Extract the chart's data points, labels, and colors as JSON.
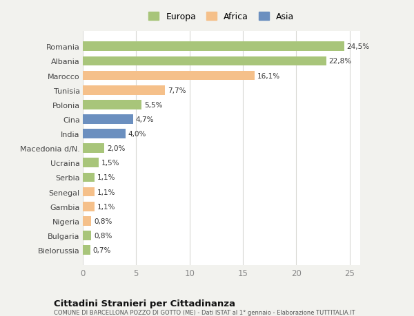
{
  "categories": [
    "Romania",
    "Albania",
    "Marocco",
    "Tunisia",
    "Polonia",
    "Cina",
    "India",
    "Macedonia d/N.",
    "Ucraina",
    "Serbia",
    "Senegal",
    "Gambia",
    "Nigeria",
    "Bulgaria",
    "Bielorussia"
  ],
  "values": [
    24.5,
    22.8,
    16.1,
    7.7,
    5.5,
    4.7,
    4.0,
    2.0,
    1.5,
    1.1,
    1.1,
    1.1,
    0.8,
    0.8,
    0.7
  ],
  "labels": [
    "24,5%",
    "22,8%",
    "16,1%",
    "7,7%",
    "5,5%",
    "4,7%",
    "4,0%",
    "2,0%",
    "1,5%",
    "1,1%",
    "1,1%",
    "1,1%",
    "0,8%",
    "0,8%",
    "0,7%"
  ],
  "colors": [
    "#a8c57a",
    "#a8c57a",
    "#f5c08a",
    "#f5c08a",
    "#a8c57a",
    "#6b8fbf",
    "#6b8fbf",
    "#a8c57a",
    "#a8c57a",
    "#a8c57a",
    "#f5c08a",
    "#f5c08a",
    "#f5c08a",
    "#a8c57a",
    "#a8c57a"
  ],
  "legend_labels": [
    "Europa",
    "Africa",
    "Asia"
  ],
  "legend_colors": [
    "#a8c57a",
    "#f5c08a",
    "#6b8fbf"
  ],
  "title": "Cittadini Stranieri per Cittadinanza",
  "subtitle": "COMUNE DI BARCELLONA POZZO DI GOTTO (ME) - Dati ISTAT al 1° gennaio - Elaborazione TUTTITALIA.IT",
  "xlim": [
    0,
    26
  ],
  "xticks": [
    0,
    5,
    10,
    15,
    20,
    25
  ],
  "bg_color": "#f2f2ee",
  "bar_bg_color": "#ffffff",
  "grid_color": "#d8d8d4"
}
